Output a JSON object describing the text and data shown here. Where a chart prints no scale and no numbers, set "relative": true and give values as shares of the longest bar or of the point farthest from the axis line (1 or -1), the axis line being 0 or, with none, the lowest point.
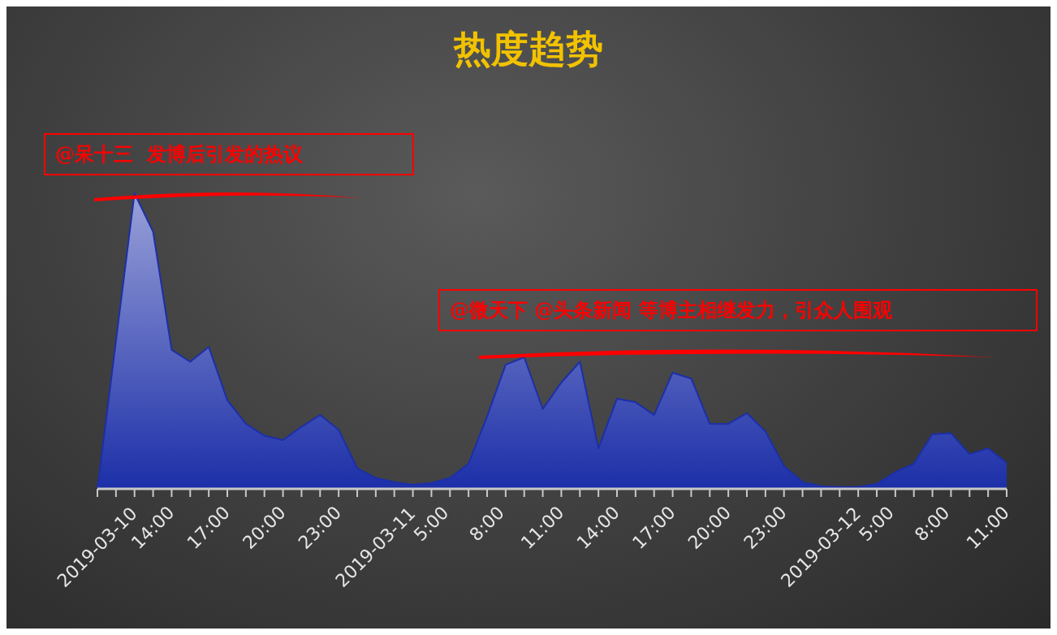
{
  "chart_data": {
    "type": "area",
    "title": "热度趋势",
    "relative": true,
    "categories": [
      "2019-03-10",
      null,
      null,
      "14:00",
      null,
      null,
      "17:00",
      null,
      null,
      "20:00",
      null,
      null,
      "23:00",
      null,
      null,
      "2019-03-11",
      null,
      null,
      "5:00",
      null,
      null,
      "8:00",
      null,
      null,
      "11:00",
      null,
      null,
      "14:00",
      null,
      null,
      "17:00",
      null,
      null,
      "20:00",
      null,
      null,
      "23:00",
      null,
      null,
      "2019-03-12",
      null,
      null,
      "5:00",
      null,
      null,
      "8:00",
      null,
      null,
      "11:00",
      null
    ],
    "series": [
      {
        "color": "#1c2fa8",
        "values": [
          0,
          0.5,
          1,
          0.87,
          0.47,
          0.43,
          0.48,
          0.3,
          0.22,
          0.18,
          0.165,
          0.21,
          0.25,
          0.2,
          0.07,
          0.037,
          0.023,
          0.014,
          0.02,
          0.037,
          0.085,
          0.245,
          0.42,
          0.445,
          0.27,
          0.36,
          0.43,
          0.137,
          0.305,
          0.293,
          0.25,
          0.393,
          0.373,
          0.22,
          0.22,
          0.256,
          0.194,
          0.077,
          0.023,
          0.009,
          0.006,
          0.006,
          0.017,
          0.057,
          0.085,
          0.185,
          0.188,
          0.117,
          0.137,
          0.088
        ]
      }
    ],
    "annotations": [
      "@呆十三  发博后引发的热议",
      "@微天下 @头条新闻 等博主相继发力，引众人围观"
    ],
    "grid": false,
    "legend": false
  }
}
